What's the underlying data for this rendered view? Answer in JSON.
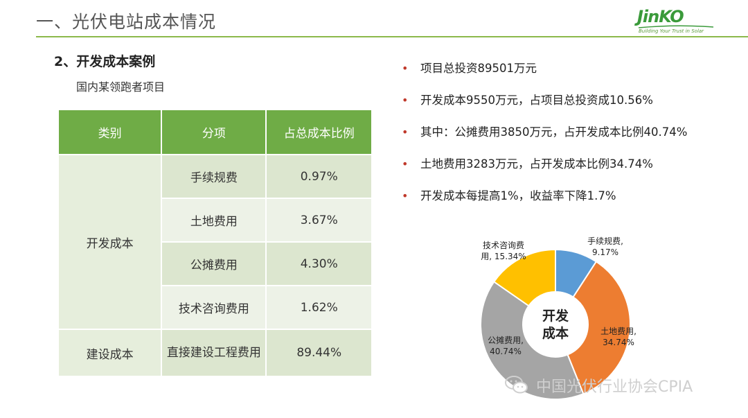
{
  "header": {
    "title": "一、光伏电站成本情况",
    "logo_text": "JinKO",
    "logo_tagline": "Building Your Trust in Solar"
  },
  "section": {
    "title": "2、开发成本案例",
    "subtitle": "国内某领跑者项目"
  },
  "table": {
    "headers": [
      "类别",
      "分项",
      "占总成本比例"
    ],
    "dev_category": "开发成本",
    "construction_category": "建设成本",
    "rows": [
      {
        "item": "手续规费",
        "ratio": "0.97%"
      },
      {
        "item": "土地费用",
        "ratio": "3.67%"
      },
      {
        "item": "公摊费用",
        "ratio": "4.30%"
      },
      {
        "item": "技术咨询费用",
        "ratio": "1.62%"
      },
      {
        "item": "直接建设工程费用",
        "ratio": "89.44%"
      }
    ]
  },
  "bullets": [
    "项目总投资89501万元",
    "开发成本9550万元，占项目总投资成10.56%",
    "其中：公摊费用3850万元，占开发成本比例40.74%",
    "土地费用3283万元，占开发成本比例34.74%",
    "开发成本每提高1%，收益率下降1.7%"
  ],
  "bullet_marker": "•",
  "colors": {
    "accent_green": "#6fac46",
    "bullet_red": "#c0392b"
  },
  "chart_data": {
    "type": "pie",
    "center_label_line1": "开发",
    "center_label_line2": "成本",
    "slices": [
      {
        "name": "手续规费",
        "value": 9.17,
        "label_line1": "手续规费,",
        "label_line2": "9.17%",
        "color": "#5b9bd5"
      },
      {
        "name": "土地费用",
        "value": 34.74,
        "label_line1": "土地费用,",
        "label_line2": "34.74%",
        "color": "#ed7d31"
      },
      {
        "name": "公摊费用",
        "value": 40.74,
        "label_line1": "公摊费用,",
        "label_line2": "40.74%",
        "color": "#a5a5a5"
      },
      {
        "name": "技术咨询费用",
        "value": 15.34,
        "label_line1": "技术咨询费",
        "label_line2": "用, 15.34%",
        "color": "#ffc000"
      }
    ]
  },
  "watermark": {
    "text": "中国光伏行业协会CPIA",
    "icon": "wechat-icon"
  }
}
